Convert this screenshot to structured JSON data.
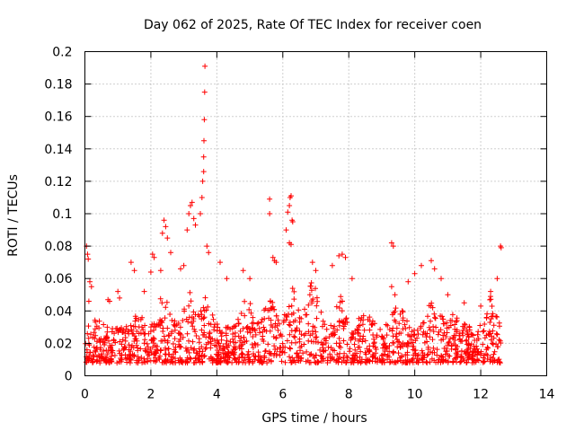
{
  "chart_data": {
    "type": "scatter",
    "title": "Day 062 of 2025, Rate Of TEC Index for receiver coen",
    "xlabel": "GPS time / hours",
    "ylabel": "ROTI / TECUs",
    "xlim": [
      0,
      14
    ],
    "ylim": [
      0,
      0.2
    ],
    "x_ticks": [
      "0",
      "2",
      "4",
      "6",
      "8",
      "10",
      "12",
      "14"
    ],
    "y_ticks": [
      "0",
      "0.02",
      "0.04",
      "0.06",
      "0.08",
      "0.1",
      "0.12",
      "0.14",
      "0.16",
      "0.18",
      "0.2"
    ],
    "grid": true,
    "marker": "+",
    "color": "#ff0000",
    "series": [
      {
        "name": "ROTI",
        "points": [
          [
            0.05,
            0.08
          ],
          [
            0.08,
            0.075
          ],
          [
            0.1,
            0.072
          ],
          [
            0.12,
            0.046
          ],
          [
            0.15,
            0.058
          ],
          [
            0.2,
            0.055
          ],
          [
            0.7,
            0.047
          ],
          [
            0.75,
            0.046
          ],
          [
            1.0,
            0.052
          ],
          [
            1.05,
            0.048
          ],
          [
            1.4,
            0.07
          ],
          [
            1.5,
            0.065
          ],
          [
            1.8,
            0.052
          ],
          [
            2.0,
            0.064
          ],
          [
            2.05,
            0.075
          ],
          [
            2.1,
            0.073
          ],
          [
            2.3,
            0.065
          ],
          [
            2.35,
            0.088
          ],
          [
            2.4,
            0.096
          ],
          [
            2.45,
            0.092
          ],
          [
            2.5,
            0.085
          ],
          [
            2.6,
            0.076
          ],
          [
            2.9,
            0.066
          ],
          [
            3.0,
            0.068
          ],
          [
            3.1,
            0.09
          ],
          [
            3.15,
            0.1
          ],
          [
            3.2,
            0.105
          ],
          [
            3.25,
            0.107
          ],
          [
            3.3,
            0.097
          ],
          [
            3.35,
            0.093
          ],
          [
            3.5,
            0.1
          ],
          [
            3.55,
            0.11
          ],
          [
            3.57,
            0.12
          ],
          [
            3.6,
            0.126
          ],
          [
            3.6,
            0.135
          ],
          [
            3.61,
            0.145
          ],
          [
            3.62,
            0.158
          ],
          [
            3.63,
            0.175
          ],
          [
            3.64,
            0.191
          ],
          [
            3.7,
            0.08
          ],
          [
            3.75,
            0.076
          ],
          [
            4.1,
            0.07
          ],
          [
            4.3,
            0.06
          ],
          [
            4.8,
            0.065
          ],
          [
            5.0,
            0.06
          ],
          [
            5.6,
            0.109
          ],
          [
            5.6,
            0.1
          ],
          [
            5.7,
            0.073
          ],
          [
            5.75,
            0.071
          ],
          [
            5.8,
            0.07
          ],
          [
            6.1,
            0.09
          ],
          [
            6.15,
            0.101
          ],
          [
            6.2,
            0.105
          ],
          [
            6.22,
            0.11
          ],
          [
            6.25,
            0.111
          ],
          [
            6.28,
            0.096
          ],
          [
            6.3,
            0.095
          ],
          [
            6.2,
            0.082
          ],
          [
            6.25,
            0.081
          ],
          [
            6.9,
            0.07
          ],
          [
            7.0,
            0.065
          ],
          [
            7.5,
            0.068
          ],
          [
            7.7,
            0.074
          ],
          [
            7.8,
            0.075
          ],
          [
            7.9,
            0.073
          ],
          [
            8.1,
            0.06
          ],
          [
            9.3,
            0.082
          ],
          [
            9.35,
            0.08
          ],
          [
            9.3,
            0.055
          ],
          [
            9.4,
            0.05
          ],
          [
            9.8,
            0.058
          ],
          [
            10.0,
            0.063
          ],
          [
            10.2,
            0.068
          ],
          [
            10.5,
            0.071
          ],
          [
            10.6,
            0.066
          ],
          [
            10.8,
            0.06
          ],
          [
            11.0,
            0.05
          ],
          [
            11.5,
            0.045
          ],
          [
            12.0,
            0.043
          ],
          [
            12.3,
            0.052
          ],
          [
            12.5,
            0.06
          ],
          [
            12.6,
            0.08
          ],
          [
            12.62,
            0.079
          ]
        ]
      }
    ]
  }
}
